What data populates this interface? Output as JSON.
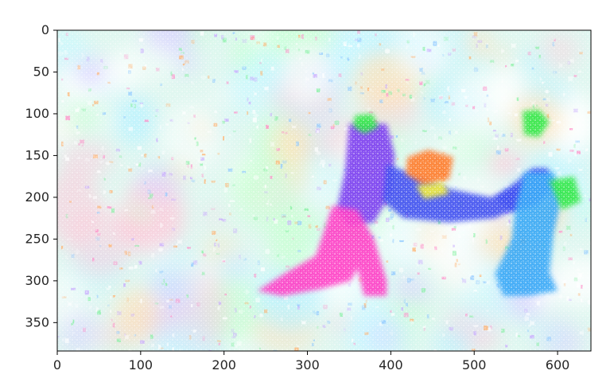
{
  "chart_data": {
    "type": "heatmap",
    "title": "",
    "xlabel": "",
    "ylabel": "",
    "xlim": [
      0,
      640
    ],
    "ylim": [
      384,
      0
    ],
    "x_ticks": [
      "0",
      "100",
      "200",
      "300",
      "400",
      "500",
      "600"
    ],
    "y_ticks": [
      "0",
      "50",
      "100",
      "150",
      "200",
      "250",
      "300",
      "350"
    ],
    "grid": false,
    "legend": "none",
    "colors": {
      "background": "#ffffff",
      "axis": "#000000",
      "tick_text": "#262626",
      "field_base": "#dff7f0",
      "purple": "#7b3cf0",
      "magenta": "#ff3fc6",
      "blue": "#3f4ff0",
      "cyan_blue": "#39a9f7",
      "green": "#33e84a",
      "orange": "#ff7a2a",
      "yellow": "#f3f03a"
    },
    "regions": [
      {
        "name": "figure-left-body",
        "color": "purple",
        "points": [
          [
            350,
            112
          ],
          [
            395,
            112
          ],
          [
            405,
            150
          ],
          [
            400,
            195
          ],
          [
            380,
            230
          ],
          [
            350,
            235
          ],
          [
            335,
            215
          ],
          [
            345,
            170
          ]
        ]
      },
      {
        "name": "figure-left-arm",
        "color": "blue",
        "points": [
          [
            395,
            160
          ],
          [
            470,
            190
          ],
          [
            520,
            200
          ],
          [
            560,
            185
          ],
          [
            570,
            205
          ],
          [
            525,
            225
          ],
          [
            470,
            230
          ],
          [
            415,
            225
          ],
          [
            390,
            205
          ]
        ]
      },
      {
        "name": "figure-left-legs",
        "color": "magenta",
        "points": [
          [
            330,
            210
          ],
          [
            360,
            215
          ],
          [
            380,
            250
          ],
          [
            395,
            300
          ],
          [
            395,
            318
          ],
          [
            368,
            318
          ],
          [
            360,
            285
          ],
          [
            352,
            300
          ],
          [
            315,
            310
          ],
          [
            270,
            318
          ],
          [
            240,
            312
          ],
          [
            275,
            290
          ],
          [
            310,
            270
          ]
        ]
      },
      {
        "name": "figure-left-head",
        "color": "green",
        "points": [
          [
            357,
            102
          ],
          [
            378,
            100
          ],
          [
            385,
            116
          ],
          [
            368,
            124
          ],
          [
            355,
            115
          ]
        ]
      },
      {
        "name": "center-orange-blob",
        "color": "orange",
        "points": [
          [
            420,
            152
          ],
          [
            445,
            143
          ],
          [
            475,
            152
          ],
          [
            470,
            178
          ],
          [
            440,
            186
          ],
          [
            418,
            172
          ]
        ]
      },
      {
        "name": "center-yellow-blob",
        "color": "yellow",
        "points": [
          [
            430,
            186
          ],
          [
            462,
            182
          ],
          [
            470,
            196
          ],
          [
            440,
            202
          ]
        ]
      },
      {
        "name": "figure-right-arm",
        "color": "blue",
        "points": [
          [
            525,
            200
          ],
          [
            555,
            178
          ],
          [
            570,
            165
          ],
          [
            588,
            165
          ],
          [
            595,
            188
          ],
          [
            575,
            210
          ],
          [
            545,
            218
          ]
        ]
      },
      {
        "name": "figure-right-head",
        "color": "green",
        "points": [
          [
            558,
            97
          ],
          [
            578,
            95
          ],
          [
            590,
            110
          ],
          [
            578,
            128
          ],
          [
            560,
            125
          ]
        ]
      },
      {
        "name": "figure-right-body",
        "color": "cyan_blue",
        "points": [
          [
            560,
            170
          ],
          [
            595,
            170
          ],
          [
            605,
            200
          ],
          [
            595,
            245
          ],
          [
            590,
            290
          ],
          [
            600,
            312
          ],
          [
            565,
            318
          ],
          [
            535,
            318
          ],
          [
            525,
            292
          ],
          [
            545,
            250
          ],
          [
            550,
            210
          ]
        ]
      },
      {
        "name": "right-green-patch",
        "color": "green",
        "points": [
          [
            590,
            180
          ],
          [
            620,
            175
          ],
          [
            628,
            205
          ],
          [
            605,
            215
          ]
        ]
      }
    ]
  }
}
